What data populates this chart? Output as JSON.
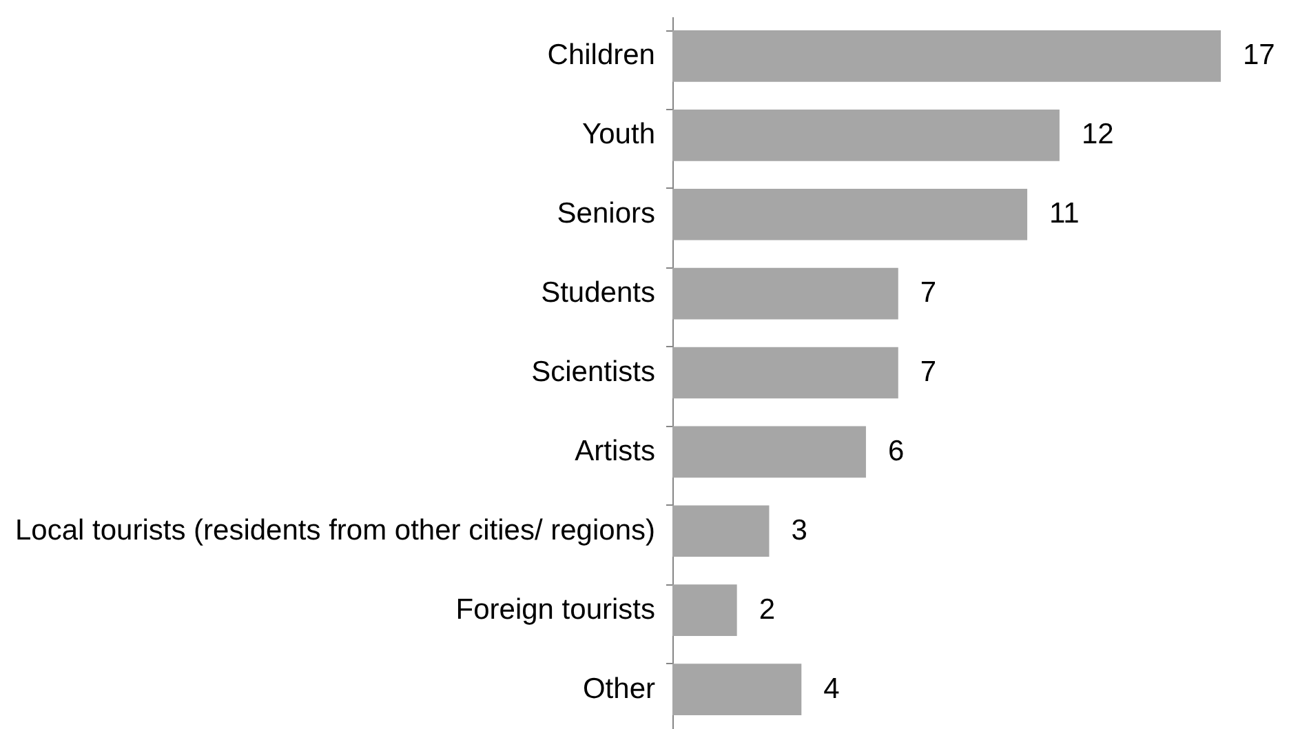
{
  "chart_data": {
    "type": "bar",
    "orientation": "horizontal",
    "categories": [
      "Children",
      "Youth",
      "Seniors",
      "Students",
      "Scientists",
      "Artists",
      "Local tourists (residents from other cities/ regions)",
      "Foreign tourists",
      "Other"
    ],
    "values": [
      17,
      12,
      11,
      7,
      7,
      6,
      3,
      2,
      4
    ],
    "color": "#a6a6a6",
    "data_labels": true,
    "tick_labels": "y"
  }
}
